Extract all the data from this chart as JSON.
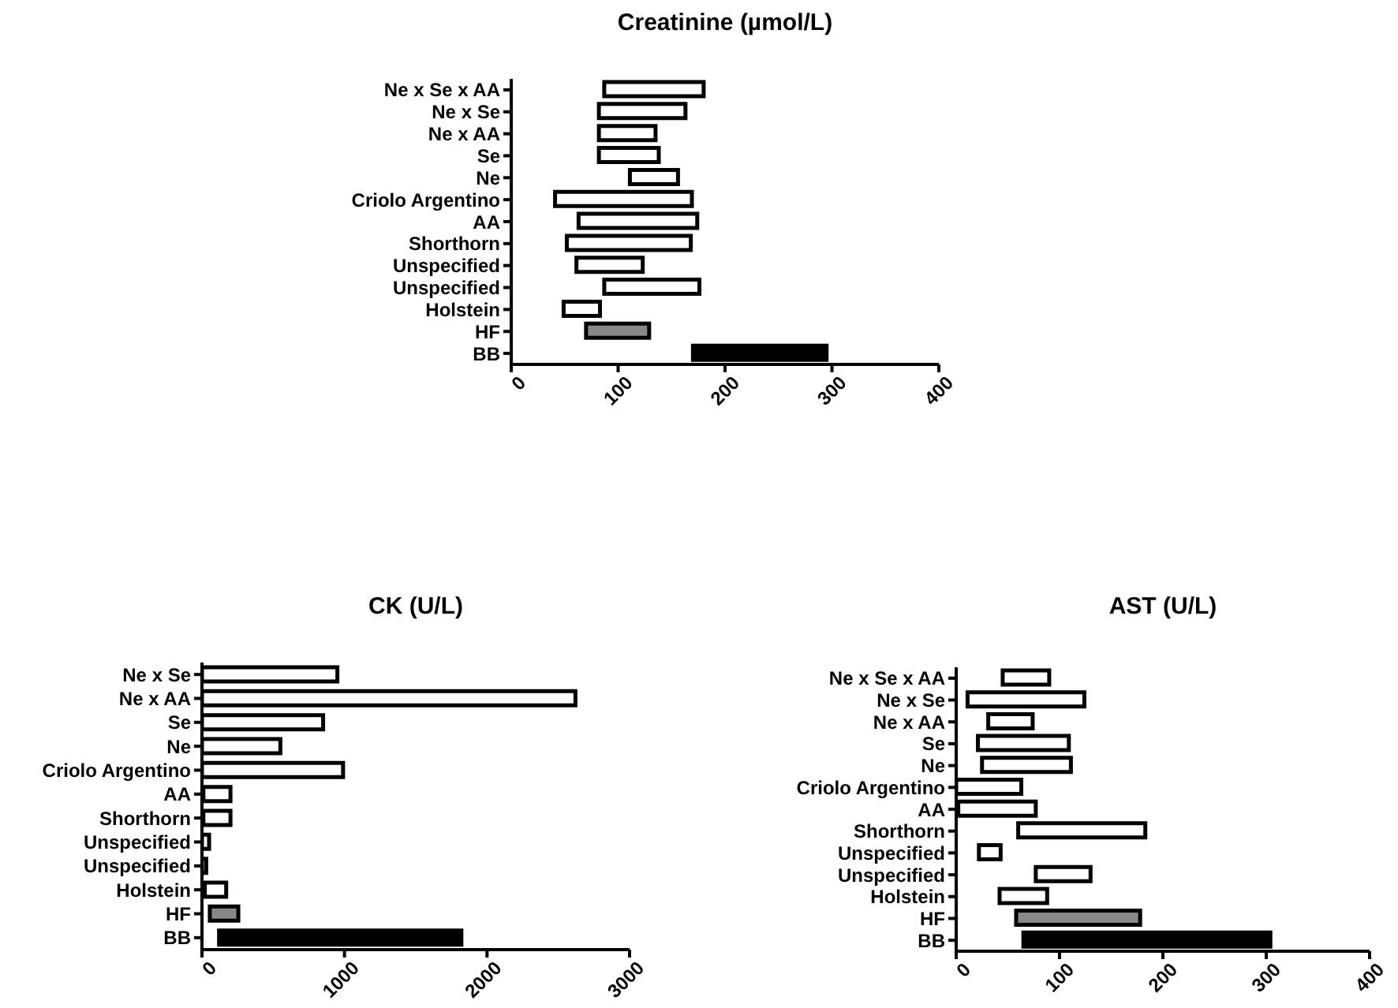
{
  "chart_data": [
    {
      "type": "bar",
      "orientation": "horizontal",
      "title": "Creatinine (µmol/L)",
      "categories": [
        "Ne x Se x AA",
        "Ne x Se",
        "Ne x AA",
        "Se",
        "Ne",
        "Criolo Argentino",
        "AA",
        "Shorthorn",
        "Unspecified",
        "Unspecified",
        "Holstein",
        "HF",
        "BB"
      ],
      "base": [
        87,
        82,
        82,
        82,
        111,
        41,
        63,
        52,
        61,
        87,
        49,
        70,
        170
      ],
      "values": [
        93,
        81,
        53,
        56,
        45,
        128,
        111,
        116,
        62,
        89,
        34,
        59,
        125
      ],
      "colors": [
        "#ffffff",
        "#ffffff",
        "#ffffff",
        "#ffffff",
        "#ffffff",
        "#ffffff",
        "#ffffff",
        "#ffffff",
        "#ffffff",
        "#ffffff",
        "#ffffff",
        "#888888",
        "#000000"
      ],
      "xlim": [
        0,
        400
      ],
      "xticks": [
        0,
        100,
        200,
        300,
        400
      ]
    },
    {
      "type": "bar",
      "orientation": "horizontal",
      "title": "CK (U/L)",
      "categories": [
        "Ne x Se",
        "Ne x AA",
        "Se",
        "Ne",
        "Criolo Argentino",
        "AA",
        "Shorthorn",
        "Unspecified",
        "Unspecified",
        "Holstein",
        "HF",
        "BB"
      ],
      "base": [
        0,
        0,
        0,
        0,
        0,
        10,
        10,
        0,
        0,
        20,
        55,
        120
      ],
      "values": [
        950,
        2620,
        850,
        550,
        990,
        190,
        190,
        50,
        30,
        150,
        200,
        1700
      ],
      "colors": [
        "#ffffff",
        "#ffffff",
        "#ffffff",
        "#ffffff",
        "#ffffff",
        "#ffffff",
        "#ffffff",
        "#ffffff",
        "#ffffff",
        "#ffffff",
        "#888888",
        "#000000"
      ],
      "xlim": [
        0,
        3000
      ],
      "xticks": [
        0,
        1000,
        2000,
        3000
      ]
    },
    {
      "type": "bar",
      "orientation": "horizontal",
      "title": "AST (U/L)",
      "categories": [
        "Ne x Se x AA",
        "Ne x Se",
        "Ne x AA",
        "Se",
        "Ne",
        "Criolo Argentino",
        "AA",
        "Shorthorn",
        "Unspecified",
        "Unspecified",
        "Holstein",
        "HF",
        "BB"
      ],
      "base": [
        45,
        11,
        31,
        21,
        25,
        0,
        2,
        60,
        22,
        77,
        42,
        58,
        65
      ],
      "values": [
        45,
        113,
        43,
        88,
        86,
        63,
        75,
        123,
        21,
        53,
        46,
        120,
        239
      ],
      "colors": [
        "#ffffff",
        "#ffffff",
        "#ffffff",
        "#ffffff",
        "#ffffff",
        "#ffffff",
        "#ffffff",
        "#ffffff",
        "#ffffff",
        "#ffffff",
        "#ffffff",
        "#888888",
        "#000000"
      ],
      "xlim": [
        0,
        400
      ],
      "xticks": [
        0,
        100,
        200,
        300,
        400
      ]
    }
  ]
}
